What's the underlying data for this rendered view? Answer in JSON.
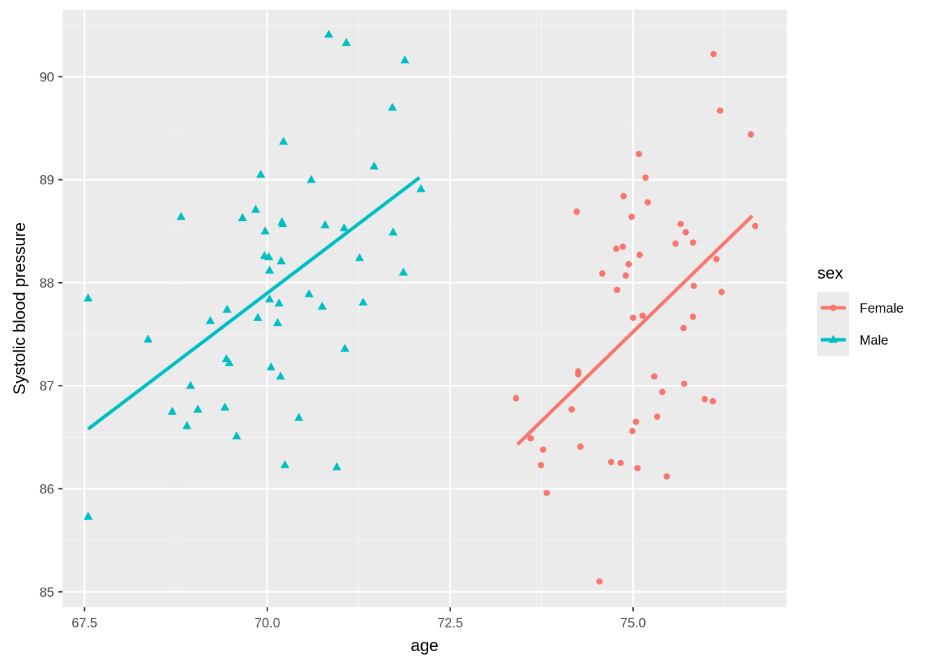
{
  "chart_data": {
    "type": "scatter",
    "xlabel": "age",
    "ylabel": "Systolic blood pressure",
    "xlim": [
      67.2,
      77.1
    ],
    "ylim": [
      84.85,
      90.65
    ],
    "x_ticks": [
      67.5,
      70.0,
      72.5,
      75.0
    ],
    "x_tick_labels": [
      "67.5",
      "70.0",
      "72.5",
      "75.0"
    ],
    "y_ticks": [
      85,
      86,
      87,
      88,
      89,
      90
    ],
    "y_tick_labels": [
      "85",
      "86",
      "87",
      "88",
      "89",
      "90"
    ],
    "grid": true,
    "legend": {
      "title": "sex",
      "position": "right"
    },
    "series": [
      {
        "name": "Female",
        "color": "#F8766D",
        "marker": "circle",
        "fit": {
          "x": [
            73.42,
            76.63
          ],
          "y": [
            86.43,
            88.65
          ]
        },
        "points": [
          [
            73.4,
            86.88
          ],
          [
            73.6,
            86.49
          ],
          [
            73.74,
            86.23
          ],
          [
            73.77,
            86.38
          ],
          [
            73.82,
            85.96
          ],
          [
            74.16,
            86.77
          ],
          [
            74.23,
            88.69
          ],
          [
            74.25,
            87.11
          ],
          [
            74.25,
            87.14
          ],
          [
            74.28,
            86.41
          ],
          [
            74.54,
            85.1
          ],
          [
            74.58,
            88.09
          ],
          [
            74.7,
            86.26
          ],
          [
            74.77,
            88.33
          ],
          [
            74.78,
            87.93
          ],
          [
            74.83,
            86.25
          ],
          [
            74.86,
            88.35
          ],
          [
            74.87,
            88.84
          ],
          [
            74.9,
            88.07
          ],
          [
            74.94,
            88.18
          ],
          [
            74.98,
            88.64
          ],
          [
            74.99,
            86.56
          ],
          [
            75.0,
            87.66
          ],
          [
            75.04,
            86.65
          ],
          [
            75.06,
            86.2
          ],
          [
            75.08,
            89.25
          ],
          [
            75.09,
            88.27
          ],
          [
            75.13,
            87.68
          ],
          [
            75.17,
            89.02
          ],
          [
            75.2,
            88.78
          ],
          [
            75.29,
            87.09
          ],
          [
            75.33,
            86.7
          ],
          [
            75.4,
            86.94
          ],
          [
            75.46,
            86.12
          ],
          [
            75.58,
            88.38
          ],
          [
            75.65,
            88.57
          ],
          [
            75.69,
            87.56
          ],
          [
            75.7,
            87.02
          ],
          [
            75.72,
            88.49
          ],
          [
            75.82,
            88.39
          ],
          [
            75.82,
            87.67
          ],
          [
            75.83,
            87.97
          ],
          [
            75.98,
            86.87
          ],
          [
            76.09,
            86.85
          ],
          [
            76.1,
            90.22
          ],
          [
            76.14,
            88.23
          ],
          [
            76.19,
            89.67
          ],
          [
            76.21,
            87.91
          ],
          [
            76.61,
            89.44
          ],
          [
            76.67,
            88.55
          ]
        ]
      },
      {
        "name": "Male",
        "color": "#00BFC4",
        "marker": "triangle",
        "fit": {
          "x": [
            67.55,
            72.08
          ],
          "y": [
            86.58,
            89.02
          ]
        },
        "points": [
          [
            67.55,
            87.85
          ],
          [
            67.55,
            85.73
          ],
          [
            68.37,
            87.45
          ],
          [
            68.7,
            86.75
          ],
          [
            68.82,
            88.64
          ],
          [
            68.9,
            86.61
          ],
          [
            68.95,
            87.0
          ],
          [
            69.05,
            86.77
          ],
          [
            69.22,
            87.63
          ],
          [
            69.42,
            86.79
          ],
          [
            69.44,
            87.26
          ],
          [
            69.45,
            87.74
          ],
          [
            69.48,
            87.22
          ],
          [
            69.58,
            86.51
          ],
          [
            69.66,
            88.63
          ],
          [
            69.84,
            88.71
          ],
          [
            69.87,
            87.66
          ],
          [
            69.91,
            89.05
          ],
          [
            69.96,
            88.26
          ],
          [
            69.97,
            88.5
          ],
          [
            70.02,
            88.25
          ],
          [
            70.03,
            88.12
          ],
          [
            70.03,
            87.84
          ],
          [
            70.05,
            87.18
          ],
          [
            70.14,
            87.61
          ],
          [
            70.16,
            87.8
          ],
          [
            70.18,
            87.09
          ],
          [
            70.19,
            88.21
          ],
          [
            70.2,
            88.59
          ],
          [
            70.21,
            88.57
          ],
          [
            70.22,
            89.37
          ],
          [
            70.24,
            86.23
          ],
          [
            70.43,
            86.69
          ],
          [
            70.57,
            87.89
          ],
          [
            70.6,
            89.0
          ],
          [
            70.75,
            87.77
          ],
          [
            70.79,
            88.56
          ],
          [
            70.84,
            90.41
          ],
          [
            70.95,
            86.21
          ],
          [
            71.05,
            88.53
          ],
          [
            71.06,
            87.36
          ],
          [
            71.08,
            90.33
          ],
          [
            71.26,
            88.24
          ],
          [
            71.31,
            87.81
          ],
          [
            71.46,
            89.13
          ],
          [
            71.71,
            89.7
          ],
          [
            71.72,
            88.49
          ],
          [
            71.86,
            88.1
          ],
          [
            71.88,
            90.16
          ],
          [
            72.1,
            88.91
          ]
        ]
      }
    ]
  }
}
